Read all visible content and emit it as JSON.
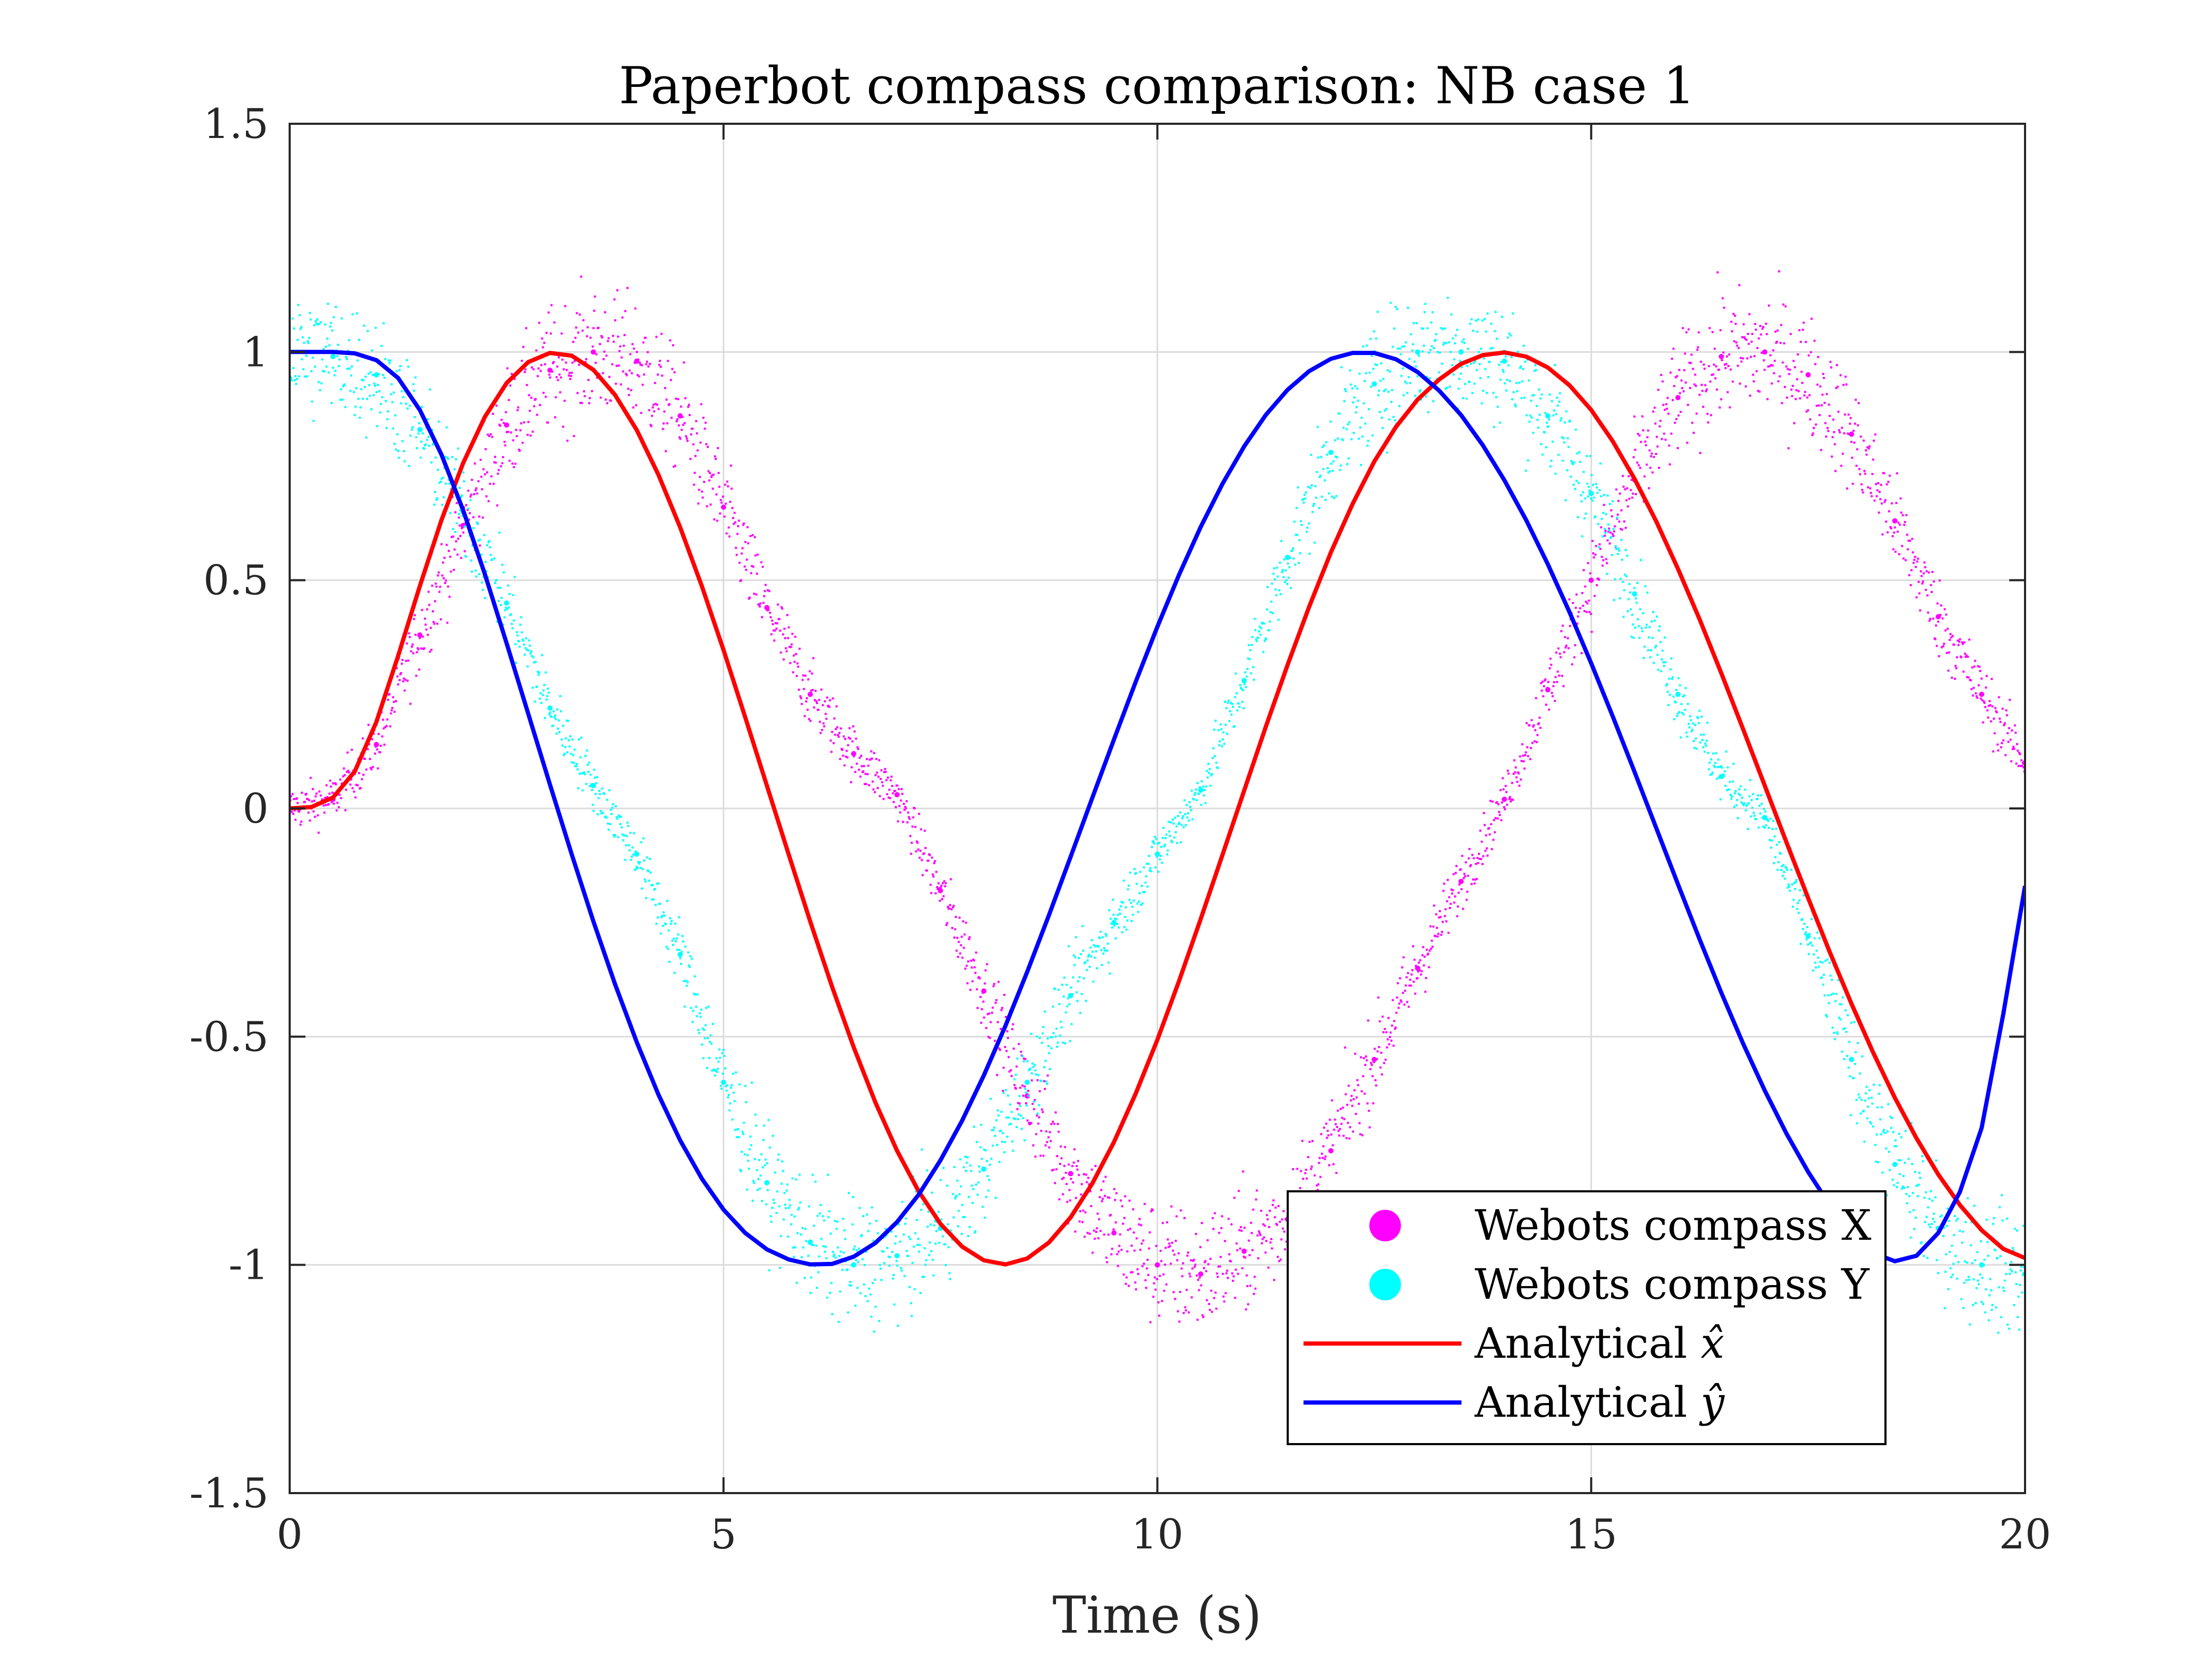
{
  "chart_data": {
    "type": "line",
    "title": "Paperbot compass comparison: NB case 1",
    "xlabel": "Time (s)",
    "ylabel": "",
    "xlim": [
      0,
      20
    ],
    "ylim": [
      -1.5,
      1.5
    ],
    "xticks": [
      0,
      5,
      10,
      15,
      20
    ],
    "xtick_labels": [
      "0",
      "5",
      "10",
      "15",
      "20"
    ],
    "yticks": [
      -1.5,
      -1,
      -0.5,
      0,
      0.5,
      1,
      1.5
    ],
    "ytick_labels": [
      "-1.5",
      "-1",
      "-0.5",
      "0",
      "0.5",
      "1",
      "1.5"
    ],
    "grid": true,
    "legend_position": "bottom-right",
    "series": [
      {
        "name": "Webots compass X",
        "style": "scatter",
        "color": "#ff00ff",
        "x": [
          0,
          0.5,
          1,
          1.5,
          2,
          2.5,
          3,
          3.5,
          4,
          4.5,
          5,
          5.5,
          6,
          6.5,
          7,
          7.5,
          8,
          8.5,
          9,
          9.5,
          10,
          10.5,
          11,
          11.5,
          12,
          12.5,
          13,
          13.5,
          14,
          14.5,
          15,
          15.5,
          16,
          16.5,
          17,
          17.5,
          18,
          18.5,
          19,
          19.5,
          20
        ],
        "y": [
          0,
          0.02,
          0.14,
          0.38,
          0.62,
          0.84,
          0.96,
          1.0,
          0.98,
          0.86,
          0.66,
          0.44,
          0.25,
          0.12,
          0.03,
          -0.18,
          -0.4,
          -0.63,
          -0.8,
          -0.93,
          -1.0,
          -1.02,
          -0.97,
          -0.9,
          -0.75,
          -0.55,
          -0.35,
          -0.16,
          0.02,
          0.26,
          0.5,
          0.72,
          0.9,
          0.99,
          1.0,
          0.95,
          0.82,
          0.63,
          0.42,
          0.25,
          0.1
        ]
      },
      {
        "name": "Webots compass Y",
        "style": "scatter",
        "color": "#00ffff",
        "x": [
          0,
          0.5,
          1,
          1.5,
          2,
          2.5,
          3,
          3.5,
          4,
          4.5,
          5,
          5.5,
          6,
          6.5,
          7,
          7.5,
          8,
          8.5,
          9,
          9.5,
          10,
          10.5,
          11,
          11.5,
          12,
          12.5,
          13,
          13.5,
          14,
          14.5,
          15,
          15.5,
          16,
          16.5,
          17,
          17.5,
          18,
          18.5,
          19,
          19.5,
          20
        ],
        "y": [
          1.0,
          0.99,
          0.95,
          0.83,
          0.65,
          0.45,
          0.22,
          0.05,
          -0.1,
          -0.32,
          -0.6,
          -0.82,
          -0.95,
          -1.0,
          -0.98,
          -0.92,
          -0.79,
          -0.6,
          -0.41,
          -0.25,
          -0.1,
          0.04,
          0.28,
          0.55,
          0.78,
          0.93,
          1.0,
          1.0,
          0.98,
          0.86,
          0.69,
          0.47,
          0.25,
          0.07,
          -0.02,
          -0.28,
          -0.55,
          -0.78,
          -0.92,
          -1.0,
          -1.02
        ]
      },
      {
        "name": "Analytical",
        "hat_symbol": "x̂",
        "style": "line",
        "color": "#ff0000",
        "x": [
          0,
          0.25,
          0.5,
          0.75,
          1,
          1.25,
          1.5,
          1.75,
          2,
          2.25,
          2.5,
          2.75,
          3,
          3.25,
          3.5,
          3.75,
          4,
          4.25,
          4.5,
          4.75,
          5,
          5.25,
          5.5,
          5.75,
          6,
          6.25,
          6.5,
          6.75,
          7,
          7.25,
          7.5,
          7.75,
          8,
          8.25,
          8.5,
          8.75,
          9,
          9.25,
          9.5,
          9.75,
          10,
          10.25,
          10.5,
          10.75,
          11,
          11.25,
          11.5,
          11.75,
          12,
          12.25,
          12.5,
          12.75,
          13,
          13.25,
          13.5,
          13.75,
          14,
          14.25,
          14.5,
          14.75,
          15,
          15.25,
          15.5,
          15.75,
          16,
          16.25,
          16.5,
          16.75,
          17,
          17.25,
          17.5,
          17.75,
          18,
          18.25,
          18.5,
          18.75,
          19,
          19.25,
          19.5,
          19.75,
          20
        ],
        "y": [
          0,
          0.003,
          0.024,
          0.081,
          0.19,
          0.334,
          0.487,
          0.632,
          0.757,
          0.858,
          0.932,
          0.978,
          0.998,
          0.992,
          0.961,
          0.906,
          0.829,
          0.731,
          0.616,
          0.487,
          0.347,
          0.2,
          0.05,
          -0.1,
          -0.248,
          -0.39,
          -0.523,
          -0.644,
          -0.75,
          -0.839,
          -0.91,
          -0.96,
          -0.99,
          -0.999,
          -0.986,
          -0.951,
          -0.896,
          -0.822,
          -0.731,
          -0.625,
          -0.507,
          -0.378,
          -0.242,
          -0.102,
          0.039,
          0.179,
          0.314,
          0.442,
          0.561,
          0.667,
          0.76,
          0.836,
          0.896,
          0.94,
          0.974,
          0.993,
          0.999,
          0.99,
          0.966,
          0.927,
          0.873,
          0.804,
          0.722,
          0.629,
          0.525,
          0.414,
          0.296,
          0.174,
          0.05,
          -0.074,
          -0.196,
          -0.315,
          -0.428,
          -0.535,
          -0.634,
          -0.723,
          -0.802,
          -0.869,
          -0.924,
          -0.965,
          -0.985
        ]
      },
      {
        "name": "Analytical",
        "hat_symbol": "ŷ",
        "style": "line",
        "color": "#0000ff",
        "x": [
          0,
          0.25,
          0.5,
          0.75,
          1,
          1.25,
          1.5,
          1.75,
          2,
          2.25,
          2.5,
          2.75,
          3,
          3.25,
          3.5,
          3.75,
          4,
          4.25,
          4.5,
          4.75,
          5,
          5.25,
          5.5,
          5.75,
          6,
          6.25,
          6.5,
          6.75,
          7,
          7.25,
          7.5,
          7.75,
          8,
          8.25,
          8.5,
          8.75,
          9,
          9.25,
          9.5,
          9.75,
          10,
          10.25,
          10.5,
          10.75,
          11,
          11.25,
          11.5,
          11.75,
          12,
          12.25,
          12.5,
          12.75,
          13,
          13.25,
          13.5,
          13.75,
          14,
          14.25,
          14.5,
          14.75,
          15,
          15.25,
          15.5,
          15.75,
          16,
          16.25,
          16.5,
          16.75,
          17,
          17.25,
          17.5,
          17.75,
          18,
          18.25,
          18.5,
          18.75,
          19,
          19.25,
          19.5,
          19.75,
          20
        ],
        "y": [
          1,
          1.0,
          1.0,
          0.997,
          0.982,
          0.943,
          0.873,
          0.775,
          0.653,
          0.513,
          0.362,
          0.207,
          0.052,
          -0.1,
          -0.247,
          -0.385,
          -0.512,
          -0.627,
          -0.727,
          -0.811,
          -0.879,
          -0.93,
          -0.966,
          -0.988,
          -0.999,
          -0.998,
          -0.982,
          -0.952,
          -0.906,
          -0.846,
          -0.771,
          -0.684,
          -0.585,
          -0.476,
          -0.358,
          -0.234,
          -0.106,
          0.023,
          0.151,
          0.277,
          0.398,
          0.512,
          0.617,
          0.711,
          0.793,
          0.862,
          0.917,
          0.958,
          0.985,
          0.998,
          0.998,
          0.984,
          0.956,
          0.915,
          0.862,
          0.796,
          0.719,
          0.632,
          0.535,
          0.43,
          0.318,
          0.201,
          0.08,
          -0.043,
          -0.166,
          -0.287,
          -0.404,
          -0.515,
          -0.618,
          -0.712,
          -0.796,
          -0.869,
          -0.93,
          -0.974,
          -0.992,
          -0.98,
          -0.93,
          -0.84,
          -0.7,
          -0.45,
          -0.17
        ]
      }
    ]
  },
  "colors": {
    "grid": "#dcdcdc",
    "axes": "#262626"
  }
}
